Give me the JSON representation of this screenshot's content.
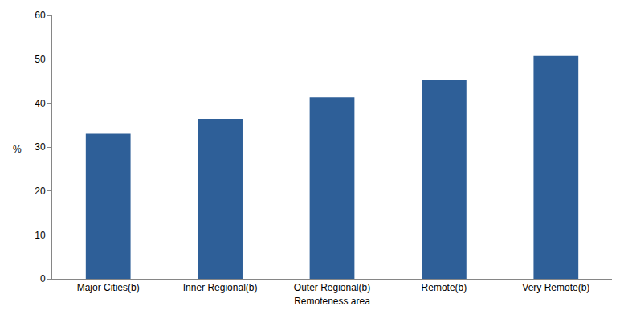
{
  "chart_data": {
    "type": "bar",
    "categories": [
      "Major Cities(b)",
      "Inner Regional(b)",
      "Outer Regional(b)",
      "Remote(b)",
      "Very Remote(b)"
    ],
    "values": [
      33.0,
      36.4,
      41.3,
      45.3,
      50.7
    ],
    "color": "#2e5f98",
    "xlabel": "Remoteness area",
    "ylabel": "%",
    "ylim": [
      0,
      60
    ],
    "yticks": [
      0,
      10,
      20,
      30,
      40,
      50,
      60
    ],
    "grid": false
  }
}
